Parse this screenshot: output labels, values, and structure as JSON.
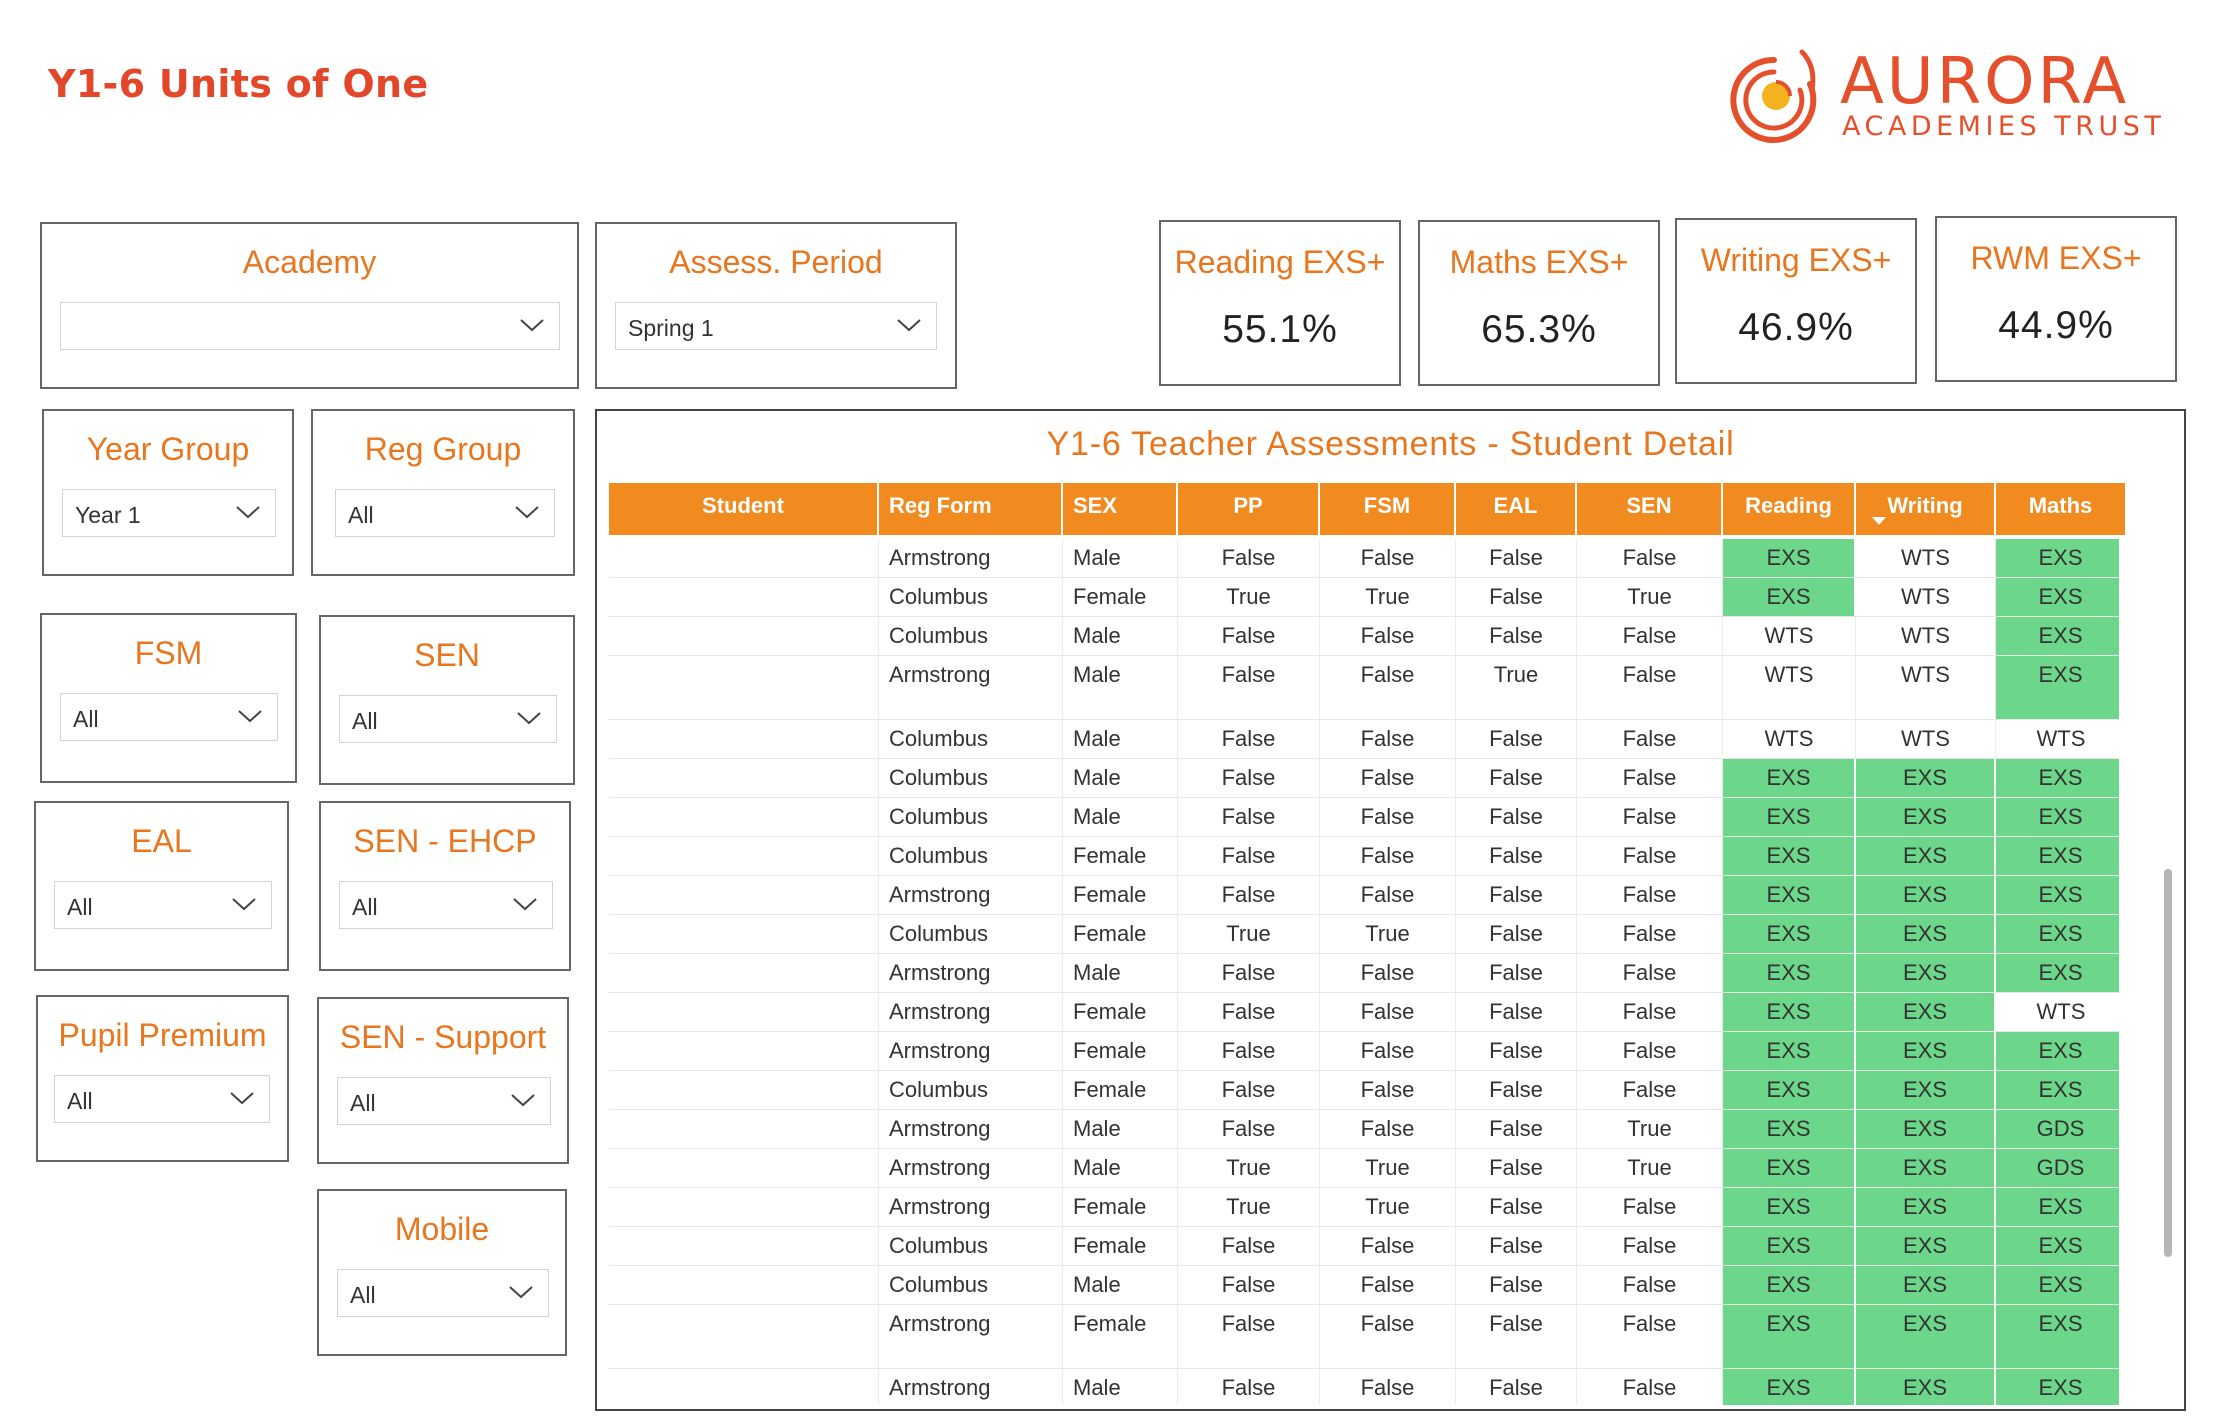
{
  "header": {
    "title": "Y1-6 Units of One"
  },
  "logo": {
    "brand": "AURORA",
    "sub": "ACADEMIES TRUST",
    "color": "#e4502c"
  },
  "slicers": {
    "academy": {
      "label": "Academy",
      "value": ""
    },
    "assess_period": {
      "label": "Assess. Period",
      "value": "Spring 1"
    },
    "year_group": {
      "label": "Year Group",
      "value": "Year 1"
    },
    "reg_group": {
      "label": "Reg Group",
      "value": "All"
    },
    "fsm": {
      "label": "FSM",
      "value": "All"
    },
    "sen": {
      "label": "SEN",
      "value": "All"
    },
    "eal": {
      "label": "EAL",
      "value": "All"
    },
    "sen_ehcp": {
      "label": "SEN - EHCP",
      "value": "All"
    },
    "pupil_premium": {
      "label": "Pupil Premium",
      "value": "All"
    },
    "sen_support": {
      "label": "SEN - Support",
      "value": "All"
    },
    "mobile": {
      "label": "Mobile",
      "value": "All"
    }
  },
  "cards": {
    "reading": {
      "label": "Reading EXS+",
      "value": "55.1%"
    },
    "maths": {
      "label": "Maths EXS+",
      "value": "65.3%"
    },
    "writing": {
      "label": "Writing EXS+",
      "value": "46.9%"
    },
    "rwm": {
      "label": "RWM EXS+",
      "value": "44.9%"
    }
  },
  "table": {
    "title": "Y1-6 Teacher Assessments - Student Detail",
    "columns": [
      "Student",
      "Reg Form",
      "SEX",
      "PP",
      "FSM",
      "EAL",
      "SEN",
      "Reading",
      "Writing",
      "Maths"
    ],
    "sorted_column": "Writing",
    "rows": [
      [
        "",
        "Armstrong",
        "Male",
        "False",
        "False",
        "False",
        "False",
        "EXS",
        "WTS",
        "EXS"
      ],
      [
        "",
        "Columbus",
        "Female",
        "True",
        "True",
        "False",
        "True",
        "EXS",
        "WTS",
        "EXS"
      ],
      [
        "",
        "Columbus",
        "Male",
        "False",
        "False",
        "False",
        "False",
        "WTS",
        "WTS",
        "EXS"
      ],
      [
        "",
        "Armstrong",
        "Male",
        "False",
        "False",
        "True",
        "False",
        "WTS",
        "WTS",
        "EXS"
      ],
      [
        "",
        "Columbus",
        "Male",
        "False",
        "False",
        "False",
        "False",
        "WTS",
        "WTS",
        "WTS"
      ],
      [
        "",
        "Columbus",
        "Male",
        "False",
        "False",
        "False",
        "False",
        "EXS",
        "EXS",
        "EXS"
      ],
      [
        "",
        "Columbus",
        "Male",
        "False",
        "False",
        "False",
        "False",
        "EXS",
        "EXS",
        "EXS"
      ],
      [
        "",
        "Columbus",
        "Female",
        "False",
        "False",
        "False",
        "False",
        "EXS",
        "EXS",
        "EXS"
      ],
      [
        "",
        "Armstrong",
        "Female",
        "False",
        "False",
        "False",
        "False",
        "EXS",
        "EXS",
        "EXS"
      ],
      [
        "",
        "Columbus",
        "Female",
        "True",
        "True",
        "False",
        "False",
        "EXS",
        "EXS",
        "EXS"
      ],
      [
        "",
        "Armstrong",
        "Male",
        "False",
        "False",
        "False",
        "False",
        "EXS",
        "EXS",
        "EXS"
      ],
      [
        "",
        "Armstrong",
        "Female",
        "False",
        "False",
        "False",
        "False",
        "EXS",
        "EXS",
        "WTS"
      ],
      [
        "",
        "Armstrong",
        "Female",
        "False",
        "False",
        "False",
        "False",
        "EXS",
        "EXS",
        "EXS"
      ],
      [
        "",
        "Columbus",
        "Female",
        "False",
        "False",
        "False",
        "False",
        "EXS",
        "EXS",
        "EXS"
      ],
      [
        "",
        "Armstrong",
        "Male",
        "False",
        "False",
        "False",
        "True",
        "EXS",
        "EXS",
        "GDS"
      ],
      [
        "",
        "Armstrong",
        "Male",
        "True",
        "True",
        "False",
        "True",
        "EXS",
        "EXS",
        "GDS"
      ],
      [
        "",
        "Armstrong",
        "Female",
        "True",
        "True",
        "False",
        "False",
        "EXS",
        "EXS",
        "EXS"
      ],
      [
        "",
        "Columbus",
        "Female",
        "False",
        "False",
        "False",
        "False",
        "EXS",
        "EXS",
        "EXS"
      ],
      [
        "",
        "Columbus",
        "Male",
        "False",
        "False",
        "False",
        "False",
        "EXS",
        "EXS",
        "EXS"
      ],
      [
        "",
        "Armstrong",
        "Female",
        "False",
        "False",
        "False",
        "False",
        "EXS",
        "EXS",
        "EXS"
      ],
      [
        "",
        "Armstrong",
        "Male",
        "False",
        "False",
        "False",
        "False",
        "EXS",
        "EXS",
        "EXS"
      ]
    ]
  },
  "colors": {
    "accent": "#e8761f",
    "title": "#e2472a",
    "header_bg": "#f28b1f",
    "highlight": "#6cd68a"
  }
}
